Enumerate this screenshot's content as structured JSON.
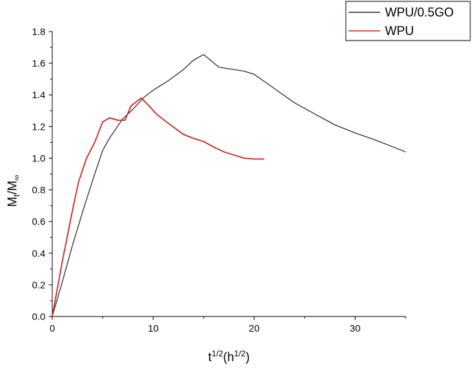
{
  "chart_data": {
    "type": "line",
    "xlabel": "t^(1/2)(h^(1/2))",
    "xlabel_base": "t",
    "xlabel_sup1": "1/2",
    "xlabel_mid": "(h",
    "xlabel_sup2": "1/2",
    "xlabel_end": ")",
    "ylabel": "Mt/M∞",
    "ylabel_main": "M",
    "ylabel_sub1": "t",
    "ylabel_mid": "/M",
    "ylabel_sub2": "∞",
    "xlim": [
      0,
      35
    ],
    "ylim": [
      0,
      1.8
    ],
    "xticks": [
      0,
      10,
      20,
      30
    ],
    "xtick_labels": [
      "0",
      "10",
      "20",
      "30"
    ],
    "yticks": [
      0,
      0.2,
      0.4,
      0.6,
      0.8,
      1.0,
      1.2,
      1.4,
      1.6,
      1.8
    ],
    "ytick_labels": [
      "0.0",
      "0.2",
      "0.4",
      "0.6",
      "0.8",
      "1.0",
      "1.2",
      "1.4",
      "1.6",
      "1.8"
    ],
    "grid": false,
    "legend_position": "top-right",
    "series": [
      {
        "name": "WPU/0.5GO",
        "color": "#333333",
        "points": [
          [
            0,
            0
          ],
          [
            1,
            0.22
          ],
          [
            2,
            0.45
          ],
          [
            3,
            0.66
          ],
          [
            4,
            0.86
          ],
          [
            5,
            1.05
          ],
          [
            5.7,
            1.13
          ],
          [
            7,
            1.25
          ],
          [
            8,
            1.31
          ],
          [
            9,
            1.38
          ],
          [
            10,
            1.43
          ],
          [
            11.5,
            1.49
          ],
          [
            13,
            1.56
          ],
          [
            14,
            1.62
          ],
          [
            15,
            1.655
          ],
          [
            16.5,
            1.575
          ],
          [
            19,
            1.55
          ],
          [
            20,
            1.53
          ],
          [
            22,
            1.44
          ],
          [
            24,
            1.35
          ],
          [
            26,
            1.28
          ],
          [
            28,
            1.21
          ],
          [
            30,
            1.16
          ],
          [
            32,
            1.115
          ],
          [
            35,
            1.04
          ]
        ]
      },
      {
        "name": "WPU",
        "color": "#d62728",
        "points": [
          [
            0,
            0
          ],
          [
            1,
            0.35
          ],
          [
            2,
            0.67
          ],
          [
            2.6,
            0.85
          ],
          [
            3.4,
            1.0
          ],
          [
            4.2,
            1.1
          ],
          [
            5,
            1.23
          ],
          [
            5.7,
            1.255
          ],
          [
            6.5,
            1.24
          ],
          [
            7.2,
            1.24
          ],
          [
            7.8,
            1.33
          ],
          [
            8.8,
            1.38
          ],
          [
            9.6,
            1.33
          ],
          [
            10.3,
            1.28
          ],
          [
            11.5,
            1.22
          ],
          [
            13,
            1.15
          ],
          [
            14,
            1.125
          ],
          [
            15,
            1.105
          ],
          [
            16,
            1.07
          ],
          [
            17,
            1.04
          ],
          [
            18,
            1.02
          ],
          [
            19,
            1.0
          ],
          [
            20,
            0.995
          ],
          [
            21,
            0.995
          ]
        ]
      }
    ]
  }
}
